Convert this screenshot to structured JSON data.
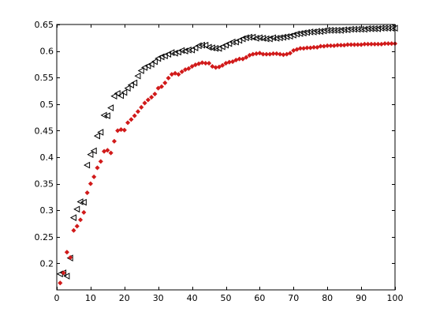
{
  "chart_data": {
    "type": "scatter",
    "title": "",
    "xlabel": "",
    "ylabel": "",
    "xlim": [
      0,
      100
    ],
    "ylim": [
      0.15,
      0.65
    ],
    "grid": false,
    "legend": "none",
    "x_ticks": [
      0,
      10,
      20,
      30,
      40,
      50,
      60,
      70,
      80,
      90,
      100
    ],
    "y_ticks": [
      0.2,
      0.25,
      0.3,
      0.35,
      0.4,
      0.45,
      0.5,
      0.55,
      0.6,
      0.65
    ],
    "x_tick_labels": [
      "0",
      "10",
      "20",
      "30",
      "40",
      "50",
      "60",
      "70",
      "80",
      "90",
      "100"
    ],
    "y_tick_labels": [
      "0.2",
      "0.25",
      "0.3",
      "0.35",
      "0.4",
      "0.45",
      "0.5",
      "0.55",
      "0.6",
      "0.65"
    ],
    "series": [
      {
        "marker": "triangle-left-open",
        "color": "#000000",
        "x": [
          1,
          2,
          3,
          4,
          5,
          6,
          7,
          8,
          9,
          10,
          11,
          12,
          13,
          14,
          15,
          16,
          17,
          18,
          19,
          20,
          21,
          22,
          23,
          24,
          25,
          26,
          27,
          28,
          29,
          30,
          31,
          32,
          33,
          34,
          35,
          36,
          37,
          38,
          39,
          40,
          41,
          42,
          43,
          44,
          45,
          46,
          47,
          48,
          49,
          50,
          51,
          52,
          53,
          54,
          55,
          56,
          57,
          58,
          59,
          60,
          61,
          62,
          63,
          64,
          65,
          66,
          67,
          68,
          69,
          70,
          71,
          72,
          73,
          74,
          75,
          76,
          77,
          78,
          79,
          80,
          81,
          82,
          83,
          84,
          85,
          86,
          87,
          88,
          89,
          90,
          91,
          92,
          93,
          94,
          95,
          96,
          97,
          98,
          99,
          100
        ],
        "y": [
          0.18,
          0.182,
          0.176,
          0.21,
          0.286,
          0.302,
          0.316,
          0.315,
          0.385,
          0.405,
          0.412,
          0.44,
          0.447,
          0.479,
          0.478,
          0.493,
          0.515,
          0.52,
          0.516,
          0.522,
          0.53,
          0.536,
          0.54,
          0.553,
          0.563,
          0.569,
          0.572,
          0.575,
          0.58,
          0.586,
          0.589,
          0.591,
          0.594,
          0.597,
          0.596,
          0.598,
          0.601,
          0.6,
          0.602,
          0.602,
          0.606,
          0.61,
          0.611,
          0.611,
          0.607,
          0.606,
          0.605,
          0.605,
          0.608,
          0.611,
          0.614,
          0.617,
          0.617,
          0.62,
          0.623,
          0.625,
          0.626,
          0.626,
          0.624,
          0.625,
          0.624,
          0.623,
          0.623,
          0.625,
          0.624,
          0.625,
          0.626,
          0.627,
          0.628,
          0.63,
          0.632,
          0.633,
          0.634,
          0.635,
          0.636,
          0.636,
          0.637,
          0.637,
          0.638,
          0.639,
          0.639,
          0.639,
          0.639,
          0.639,
          0.64,
          0.64,
          0.641,
          0.641,
          0.641,
          0.641,
          0.641,
          0.642,
          0.642,
          0.642,
          0.642,
          0.643,
          0.643,
          0.643,
          0.643,
          0.643
        ]
      },
      {
        "marker": "diamond-filled",
        "color": "#d11a1a",
        "x": [
          1,
          2,
          3,
          4,
          5,
          6,
          7,
          8,
          9,
          10,
          11,
          12,
          13,
          14,
          15,
          16,
          17,
          18,
          19,
          20,
          21,
          22,
          23,
          24,
          25,
          26,
          27,
          28,
          29,
          30,
          31,
          32,
          33,
          34,
          35,
          36,
          37,
          38,
          39,
          40,
          41,
          42,
          43,
          44,
          45,
          46,
          47,
          48,
          49,
          50,
          51,
          52,
          53,
          54,
          55,
          56,
          57,
          58,
          59,
          60,
          61,
          62,
          63,
          64,
          65,
          66,
          67,
          68,
          69,
          70,
          71,
          72,
          73,
          74,
          75,
          76,
          77,
          78,
          79,
          80,
          81,
          82,
          83,
          84,
          85,
          86,
          87,
          88,
          89,
          90,
          91,
          92,
          93,
          94,
          95,
          96,
          97,
          98,
          99,
          100
        ],
        "y": [
          0.163,
          0.182,
          0.221,
          0.211,
          0.262,
          0.27,
          0.282,
          0.296,
          0.333,
          0.35,
          0.363,
          0.38,
          0.392,
          0.411,
          0.413,
          0.408,
          0.43,
          0.45,
          0.452,
          0.451,
          0.465,
          0.471,
          0.478,
          0.486,
          0.494,
          0.502,
          0.508,
          0.513,
          0.519,
          0.53,
          0.533,
          0.54,
          0.549,
          0.556,
          0.558,
          0.556,
          0.561,
          0.565,
          0.567,
          0.571,
          0.574,
          0.576,
          0.578,
          0.577,
          0.577,
          0.571,
          0.569,
          0.57,
          0.573,
          0.577,
          0.579,
          0.58,
          0.583,
          0.585,
          0.585,
          0.588,
          0.592,
          0.594,
          0.595,
          0.596,
          0.594,
          0.594,
          0.594,
          0.595,
          0.595,
          0.594,
          0.593,
          0.594,
          0.596,
          0.601,
          0.603,
          0.605,
          0.605,
          0.606,
          0.606,
          0.607,
          0.607,
          0.609,
          0.609,
          0.61,
          0.61,
          0.61,
          0.611,
          0.611,
          0.611,
          0.612,
          0.612,
          0.612,
          0.612,
          0.612,
          0.613,
          0.613,
          0.613,
          0.613,
          0.613,
          0.613,
          0.614,
          0.614,
          0.614,
          0.614
        ]
      }
    ]
  }
}
